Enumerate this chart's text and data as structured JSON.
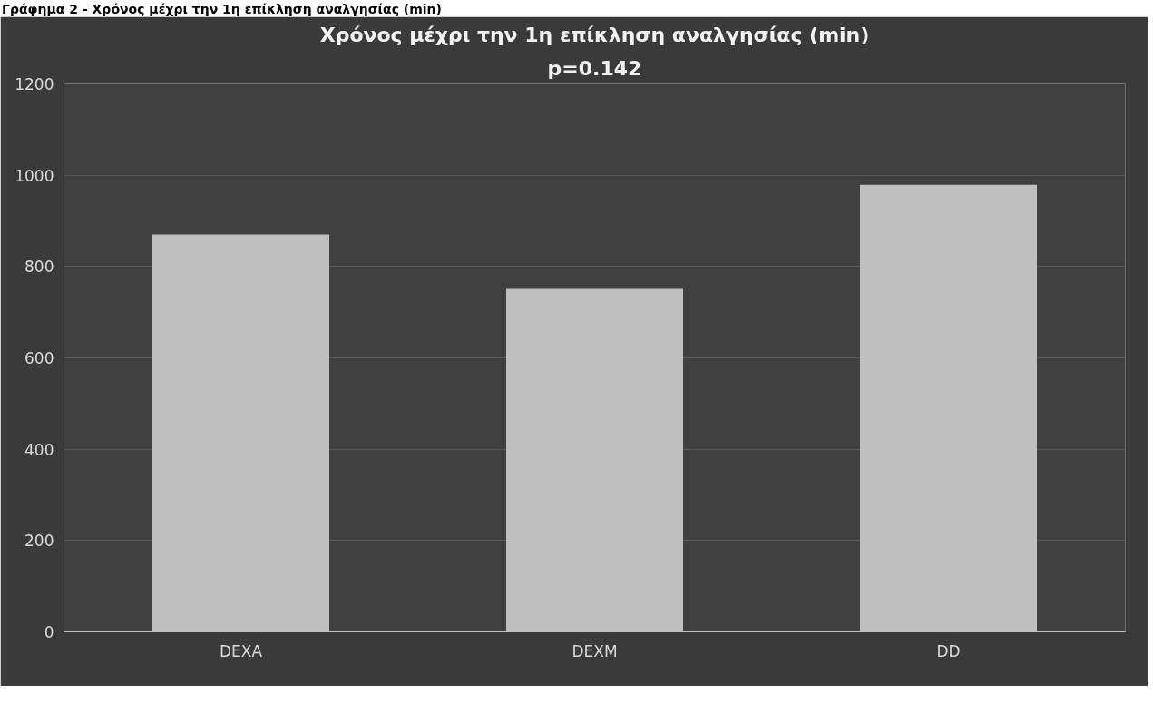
{
  "chart_data": {
    "type": "bar",
    "title": "Χρόνος μέχρι την 1η επίκληση αναλγησίας (min)",
    "subtitle": "p=0.142",
    "annotations": [
      "Γράφημα 2 - Χρόνος μέχρι την 1η επίκληση αναλγησίας (min)"
    ],
    "categories": [
      "DEXA",
      "DEXM",
      "DD"
    ],
    "series": [
      {
        "color": "#bfbfbf",
        "values": [
          870,
          751,
          979
        ]
      }
    ],
    "ylim": [
      0,
      1200
    ],
    "yticks": [
      0,
      200,
      400,
      600,
      800,
      1000,
      1200
    ],
    "grid": "y"
  }
}
